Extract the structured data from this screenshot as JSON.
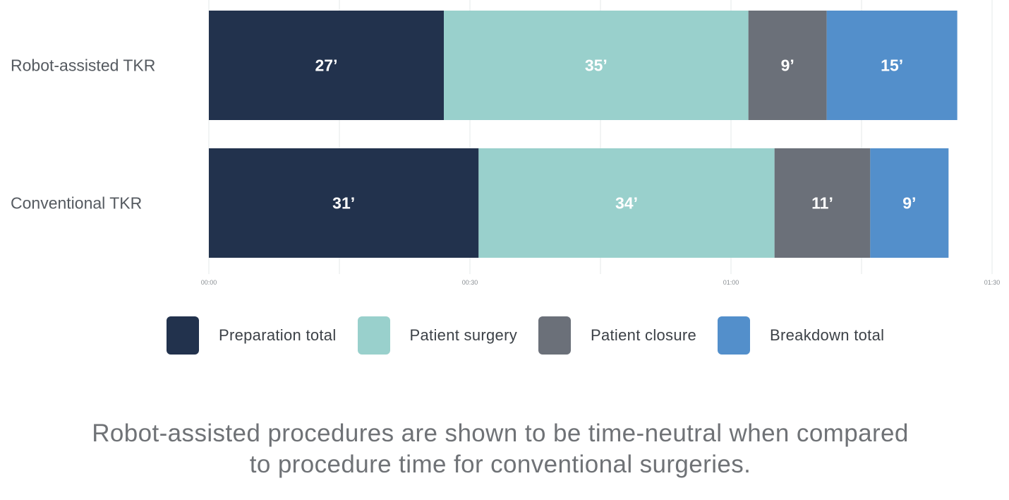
{
  "chart_data": {
    "type": "bar",
    "orientation": "horizontal",
    "stacked": true,
    "categories": [
      "Robot-assisted TKR",
      "Conventional TKR"
    ],
    "series": [
      {
        "name": "Preparation total",
        "values": [
          27,
          31
        ],
        "labels": [
          "27’",
          "31’"
        ],
        "color": "#22324d"
      },
      {
        "name": "Patient surgery",
        "values": [
          35,
          34
        ],
        "labels": [
          "35’",
          "34’"
        ],
        "color": "#99d0cc"
      },
      {
        "name": "Patient closure",
        "values": [
          9,
          11
        ],
        "labels": [
          "9’",
          "11’"
        ],
        "color": "#6b7079"
      },
      {
        "name": "Breakdown total",
        "values": [
          15,
          9
        ],
        "labels": [
          "15’",
          "9’"
        ],
        "color": "#538fcb"
      }
    ],
    "xlim": [
      0,
      90
    ],
    "xticks": [
      0,
      30,
      60,
      90
    ],
    "xtick_labels": [
      "00:00",
      "00:30",
      "01:00",
      "01:30"
    ],
    "grid": true,
    "legend_position": "bottom"
  },
  "caption": {
    "line1": "Robot-assisted procedures are shown to be time-neutral when compared",
    "line2": "to procedure time for conventional surgeries."
  }
}
